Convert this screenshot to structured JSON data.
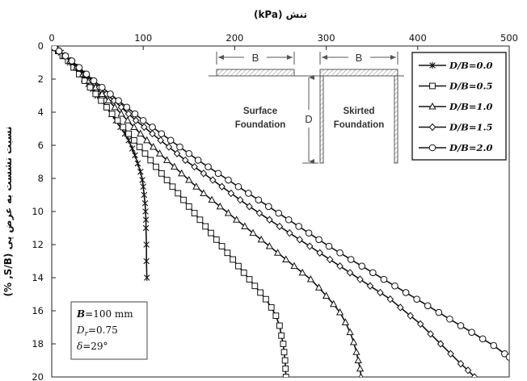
{
  "chart_data": {
    "type": "line",
    "title": "",
    "xlabel": "تنش (kPa)",
    "ylabel": "نسبت نشست به عرض پی (S/B, %)",
    "xlim": [
      0,
      500
    ],
    "ylim": [
      0,
      20
    ],
    "x_axis_position": "top",
    "y_inverted": true,
    "x_ticks": [
      0,
      100,
      200,
      300,
      400,
      500
    ],
    "y_ticks": [
      0,
      2,
      4,
      6,
      8,
      10,
      12,
      14,
      16,
      18,
      20
    ],
    "grid": false,
    "legend_position": "top-right",
    "series": [
      {
        "name": "D/B=0.0",
        "marker": "asterisk",
        "points": [
          [
            0,
            0
          ],
          [
            2,
            0.05
          ],
          [
            5,
            0.15
          ],
          [
            10,
            0.4
          ],
          [
            15,
            0.6
          ],
          [
            20,
            1.0
          ],
          [
            25,
            1.3
          ],
          [
            30,
            1.6
          ],
          [
            35,
            2.0
          ],
          [
            40,
            2.3
          ],
          [
            45,
            2.6
          ],
          [
            50,
            3.0
          ],
          [
            55,
            3.3
          ],
          [
            60,
            3.7
          ],
          [
            65,
            4.1
          ],
          [
            70,
            4.5
          ],
          [
            75,
            4.9
          ],
          [
            80,
            5.3
          ],
          [
            84,
            5.7
          ],
          [
            88,
            6.2
          ],
          [
            91,
            6.6
          ],
          [
            94,
            7.1
          ],
          [
            97,
            7.6
          ],
          [
            99,
            8.1
          ],
          [
            100,
            8.5
          ],
          [
            101,
            9.0
          ],
          [
            102,
            9.5
          ],
          [
            102.5,
            10.0
          ],
          [
            103,
            10.5
          ],
          [
            103,
            11.0
          ],
          [
            103.5,
            12.0
          ],
          [
            103.5,
            13.0
          ],
          [
            104,
            14.0
          ]
        ]
      },
      {
        "name": "D/B=0.5",
        "marker": "square",
        "points": [
          [
            0,
            0
          ],
          [
            3,
            0.1
          ],
          [
            7,
            0.3
          ],
          [
            12,
            0.6
          ],
          [
            18,
            0.9
          ],
          [
            24,
            1.3
          ],
          [
            30,
            1.7
          ],
          [
            36,
            2.1
          ],
          [
            42,
            2.5
          ],
          [
            48,
            2.9
          ],
          [
            54,
            3.3
          ],
          [
            60,
            3.7
          ],
          [
            66,
            4.1
          ],
          [
            72,
            4.5
          ],
          [
            78,
            4.9
          ],
          [
            84,
            5.3
          ],
          [
            90,
            5.7
          ],
          [
            96,
            6.1
          ],
          [
            102,
            6.5
          ],
          [
            108,
            6.9
          ],
          [
            114,
            7.3
          ],
          [
            120,
            7.7
          ],
          [
            126,
            8.1
          ],
          [
            132,
            8.5
          ],
          [
            138,
            8.9
          ],
          [
            144,
            9.3
          ],
          [
            150,
            9.7
          ],
          [
            156,
            10.1
          ],
          [
            162,
            10.5
          ],
          [
            168,
            10.9
          ],
          [
            174,
            11.3
          ],
          [
            180,
            11.7
          ],
          [
            186,
            12.1
          ],
          [
            192,
            12.5
          ],
          [
            198,
            12.9
          ],
          [
            204,
            13.3
          ],
          [
            210,
            13.7
          ],
          [
            216,
            14.1
          ],
          [
            222,
            14.5
          ],
          [
            228,
            14.9
          ],
          [
            234,
            15.3
          ],
          [
            240,
            15.8
          ],
          [
            245,
            16.3
          ],
          [
            249,
            16.9
          ],
          [
            251,
            17.5
          ],
          [
            253,
            18.0
          ],
          [
            254,
            18.5
          ],
          [
            255,
            19.0
          ],
          [
            255.5,
            19.5
          ],
          [
            256,
            20.0
          ]
        ]
      },
      {
        "name": "D/B=1.0",
        "marker": "triangle",
        "points": [
          [
            0,
            0
          ],
          [
            3,
            0.1
          ],
          [
            8,
            0.3
          ],
          [
            14,
            0.6
          ],
          [
            20,
            0.9
          ],
          [
            27,
            1.3
          ],
          [
            34,
            1.7
          ],
          [
            41,
            2.1
          ],
          [
            48,
            2.5
          ],
          [
            55,
            2.9
          ],
          [
            62,
            3.3
          ],
          [
            69,
            3.7
          ],
          [
            76,
            4.1
          ],
          [
            83,
            4.5
          ],
          [
            90,
            4.9
          ],
          [
            97,
            5.3
          ],
          [
            104,
            5.7
          ],
          [
            111,
            6.1
          ],
          [
            118,
            6.5
          ],
          [
            126,
            6.9
          ],
          [
            134,
            7.3
          ],
          [
            142,
            7.7
          ],
          [
            150,
            8.1
          ],
          [
            158,
            8.5
          ],
          [
            166,
            8.9
          ],
          [
            175,
            9.3
          ],
          [
            184,
            9.7
          ],
          [
            193,
            10.1
          ],
          [
            202,
            10.5
          ],
          [
            211,
            10.9
          ],
          [
            220,
            11.3
          ],
          [
            229,
            11.7
          ],
          [
            238,
            12.1
          ],
          [
            247,
            12.5
          ],
          [
            256,
            12.9
          ],
          [
            265,
            13.3
          ],
          [
            274,
            13.7
          ],
          [
            283,
            14.1
          ],
          [
            292,
            14.6
          ],
          [
            300,
            15.1
          ],
          [
            308,
            15.6
          ],
          [
            315,
            16.1
          ],
          [
            321,
            16.7
          ],
          [
            326,
            17.3
          ],
          [
            330,
            17.9
          ],
          [
            333,
            18.5
          ],
          [
            335,
            19.0
          ],
          [
            337,
            19.5
          ],
          [
            338,
            20.0
          ]
        ]
      },
      {
        "name": "D/B=1.5",
        "marker": "diamond",
        "points": [
          [
            0,
            0
          ],
          [
            3,
            0.1
          ],
          [
            8,
            0.3
          ],
          [
            14,
            0.6
          ],
          [
            21,
            0.9
          ],
          [
            28,
            1.3
          ],
          [
            36,
            1.7
          ],
          [
            44,
            2.1
          ],
          [
            52,
            2.5
          ],
          [
            60,
            2.9
          ],
          [
            68,
            3.3
          ],
          [
            76,
            3.7
          ],
          [
            84,
            4.1
          ],
          [
            92,
            4.5
          ],
          [
            101,
            4.9
          ],
          [
            110,
            5.3
          ],
          [
            119,
            5.7
          ],
          [
            128,
            6.1
          ],
          [
            137,
            6.5
          ],
          [
            146,
            6.9
          ],
          [
            156,
            7.3
          ],
          [
            166,
            7.7
          ],
          [
            176,
            8.1
          ],
          [
            186,
            8.5
          ],
          [
            196,
            8.9
          ],
          [
            206,
            9.3
          ],
          [
            216,
            9.7
          ],
          [
            227,
            10.1
          ],
          [
            238,
            10.5
          ],
          [
            249,
            10.9
          ],
          [
            260,
            11.3
          ],
          [
            271,
            11.7
          ],
          [
            282,
            12.1
          ],
          [
            293,
            12.5
          ],
          [
            304,
            12.9
          ],
          [
            315,
            13.3
          ],
          [
            326,
            13.7
          ],
          [
            337,
            14.1
          ],
          [
            348,
            14.5
          ],
          [
            359,
            14.9
          ],
          [
            370,
            15.3
          ],
          [
            381,
            15.8
          ],
          [
            392,
            16.3
          ],
          [
            403,
            16.8
          ],
          [
            414,
            17.4
          ],
          [
            425,
            18.0
          ],
          [
            436,
            18.6
          ],
          [
            447,
            19.2
          ],
          [
            455,
            19.6
          ],
          [
            462,
            20.0
          ]
        ]
      },
      {
        "name": "D/B=2.0",
        "marker": "circle",
        "points": [
          [
            0,
            0
          ],
          [
            3,
            0.1
          ],
          [
            8,
            0.3
          ],
          [
            15,
            0.6
          ],
          [
            22,
            0.9
          ],
          [
            30,
            1.3
          ],
          [
            38,
            1.7
          ],
          [
            46,
            2.1
          ],
          [
            55,
            2.5
          ],
          [
            64,
            2.9
          ],
          [
            73,
            3.3
          ],
          [
            82,
            3.7
          ],
          [
            91,
            4.1
          ],
          [
            100,
            4.5
          ],
          [
            110,
            4.9
          ],
          [
            120,
            5.3
          ],
          [
            130,
            5.7
          ],
          [
            140,
            6.1
          ],
          [
            150,
            6.5
          ],
          [
            160,
            6.9
          ],
          [
            171,
            7.3
          ],
          [
            182,
            7.7
          ],
          [
            193,
            8.1
          ],
          [
            204,
            8.5
          ],
          [
            215,
            8.9
          ],
          [
            226,
            9.3
          ],
          [
            237,
            9.7
          ],
          [
            248,
            10.1
          ],
          [
            259,
            10.5
          ],
          [
            270,
            10.9
          ],
          [
            281,
            11.3
          ],
          [
            292,
            11.7
          ],
          [
            303,
            12.1
          ],
          [
            315,
            12.5
          ],
          [
            327,
            12.9
          ],
          [
            339,
            13.3
          ],
          [
            351,
            13.7
          ],
          [
            363,
            14.1
          ],
          [
            375,
            14.5
          ],
          [
            387,
            14.9
          ],
          [
            399,
            15.3
          ],
          [
            411,
            15.7
          ],
          [
            423,
            16.1
          ],
          [
            435,
            16.5
          ],
          [
            447,
            16.9
          ],
          [
            459,
            17.3
          ],
          [
            471,
            17.7
          ],
          [
            483,
            18.1
          ],
          [
            495,
            18.6
          ],
          [
            500,
            18.8
          ]
        ]
      }
    ],
    "annotation": {
      "line1_bold": "B",
      "line1_rest": "=100 mm",
      "line2_italic": "D",
      "line2_sub": "r",
      "line2_rest": "=0.75",
      "line3_italic": "δ",
      "line3_rest": "=29°"
    },
    "schematic": {
      "left_width_label": "B",
      "right_width_label": "B",
      "depth_label": "D",
      "left_caption": [
        "Surface",
        "Foundation"
      ],
      "right_caption": [
        "Skirted",
        "Foundation"
      ]
    }
  }
}
